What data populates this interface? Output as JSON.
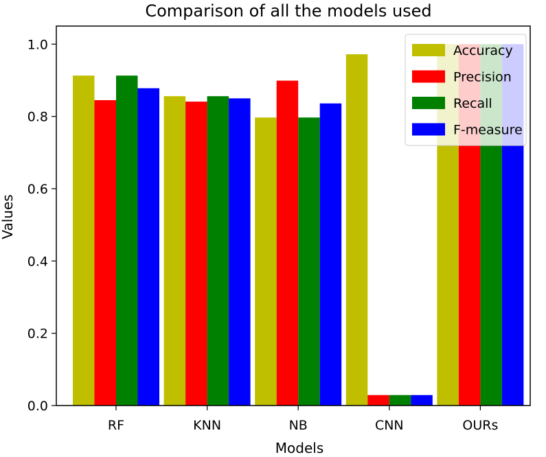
{
  "chart_data": {
    "type": "bar",
    "title": "Comparison of all the models used",
    "xlabel": "Models",
    "ylabel": "Values",
    "categories": [
      "RF",
      "KNN",
      "NB",
      "CNN",
      "OURs"
    ],
    "ylim": [
      0,
      1.05
    ],
    "yticks": [
      "0.0",
      "0.2",
      "0.4",
      "0.6",
      "0.8",
      "1.0"
    ],
    "grid": false,
    "legend_position": "top-right",
    "series": [
      {
        "name": "Accuracy",
        "color": "#bfbf00",
        "values": [
          0.913,
          0.856,
          0.797,
          0.972,
          1.0
        ]
      },
      {
        "name": "Precision",
        "color": "#ff0000",
        "values": [
          0.845,
          0.841,
          0.899,
          0.029,
          1.0
        ]
      },
      {
        "name": "Recall",
        "color": "#008000",
        "values": [
          0.913,
          0.856,
          0.797,
          0.029,
          1.0
        ]
      },
      {
        "name": "F-measure",
        "color": "#0000ff",
        "values": [
          0.878,
          0.85,
          0.836,
          0.029,
          1.0
        ]
      }
    ]
  }
}
